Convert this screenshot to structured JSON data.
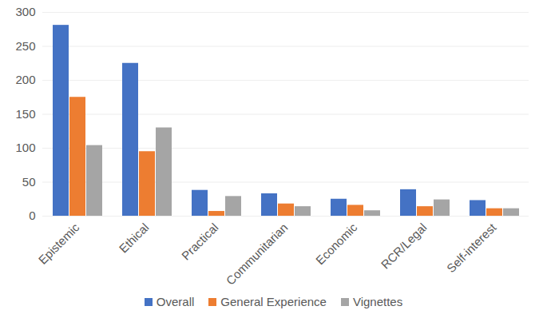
{
  "chart_data": {
    "type": "bar",
    "categories": [
      "Epistemic",
      "Ethical",
      "Practical",
      "Communitarian",
      "Economic",
      "RCR/Legal",
      "Self-interest"
    ],
    "series": [
      {
        "name": "Overall",
        "color": "#4472c4",
        "values": [
          281,
          225,
          38,
          33,
          25,
          39,
          23
        ]
      },
      {
        "name": "General Experience",
        "color": "#ed7d31",
        "values": [
          175,
          95,
          7,
          18,
          16,
          14,
          11
        ]
      },
      {
        "name": "Vignettes",
        "color": "#a5a5a5",
        "values": [
          104,
          130,
          29,
          14,
          8,
          24,
          11
        ]
      }
    ],
    "ylim": [
      0,
      300
    ],
    "yticks": [
      0,
      50,
      100,
      150,
      200,
      250,
      300
    ],
    "grid": true,
    "legend": "bottom"
  }
}
